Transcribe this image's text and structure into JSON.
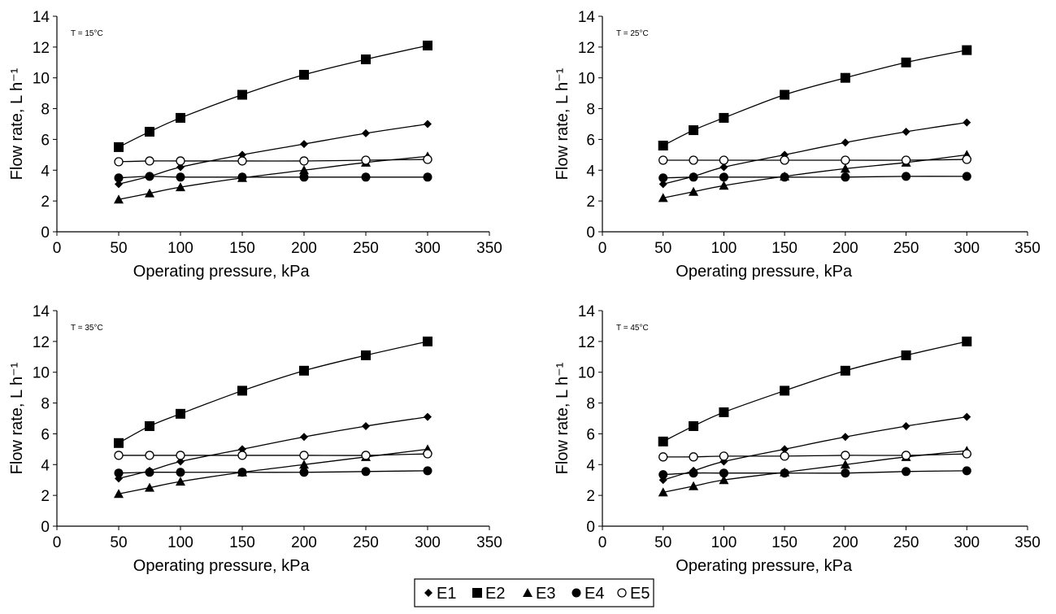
{
  "chart_data": [
    {
      "type": "line",
      "annotation": "T = 15°C",
      "xlabel": "Operating pressure, kPa",
      "ylabel": "Flow rate, L h⁻¹",
      "xlim": [
        0,
        350
      ],
      "ylim": [
        0,
        14
      ],
      "xticks": [
        0,
        50,
        100,
        150,
        200,
        250,
        300,
        350
      ],
      "yticks": [
        0,
        2,
        4,
        6,
        8,
        10,
        12,
        14
      ],
      "x": [
        50,
        75,
        100,
        150,
        200,
        250,
        300
      ],
      "series": [
        {
          "name": "E1",
          "values": [
            3.1,
            3.6,
            4.2,
            5.0,
            5.7,
            6.4,
            7.0
          ]
        },
        {
          "name": "E2",
          "values": [
            5.5,
            6.5,
            7.4,
            8.9,
            10.2,
            11.2,
            12.1
          ]
        },
        {
          "name": "E3",
          "values": [
            2.1,
            2.5,
            2.9,
            3.5,
            4.0,
            4.5,
            4.9
          ]
        },
        {
          "name": "E4",
          "values": [
            3.5,
            3.6,
            3.55,
            3.55,
            3.55,
            3.55,
            3.55
          ]
        },
        {
          "name": "E5",
          "values": [
            4.55,
            4.6,
            4.6,
            4.6,
            4.6,
            4.65,
            4.7
          ]
        }
      ]
    },
    {
      "type": "line",
      "annotation": "T = 25°C",
      "xlabel": "Operating pressure, kPa",
      "ylabel": "Flow rate, L h⁻¹",
      "xlim": [
        0,
        350
      ],
      "ylim": [
        0,
        14
      ],
      "xticks": [
        0,
        50,
        100,
        150,
        200,
        250,
        300,
        350
      ],
      "yticks": [
        0,
        2,
        4,
        6,
        8,
        10,
        12,
        14
      ],
      "x": [
        50,
        75,
        100,
        150,
        200,
        250,
        300
      ],
      "series": [
        {
          "name": "E1",
          "values": [
            3.1,
            3.6,
            4.2,
            5.0,
            5.8,
            6.5,
            7.1
          ]
        },
        {
          "name": "E2",
          "values": [
            5.6,
            6.6,
            7.4,
            8.9,
            10.0,
            11.0,
            11.8
          ]
        },
        {
          "name": "E3",
          "values": [
            2.2,
            2.6,
            3.0,
            3.6,
            4.1,
            4.5,
            5.0
          ]
        },
        {
          "name": "E4",
          "values": [
            3.5,
            3.55,
            3.55,
            3.55,
            3.55,
            3.6,
            3.6
          ]
        },
        {
          "name": "E5",
          "values": [
            4.65,
            4.65,
            4.65,
            4.65,
            4.65,
            4.65,
            4.7
          ]
        }
      ]
    },
    {
      "type": "line",
      "annotation": "T = 35°C",
      "xlabel": "Operating pressure, kPa",
      "ylabel": "Flow rate, L h⁻¹",
      "xlim": [
        0,
        350
      ],
      "ylim": [
        0,
        14
      ],
      "xticks": [
        0,
        50,
        100,
        150,
        200,
        250,
        300,
        350
      ],
      "yticks": [
        0,
        2,
        4,
        6,
        8,
        10,
        12,
        14
      ],
      "x": [
        50,
        75,
        100,
        150,
        200,
        250,
        300
      ],
      "series": [
        {
          "name": "E1",
          "values": [
            3.1,
            3.6,
            4.2,
            5.0,
            5.8,
            6.5,
            7.1
          ]
        },
        {
          "name": "E2",
          "values": [
            5.4,
            6.5,
            7.3,
            8.8,
            10.1,
            11.1,
            12.0
          ]
        },
        {
          "name": "E3",
          "values": [
            2.1,
            2.5,
            2.9,
            3.5,
            4.0,
            4.5,
            5.0
          ]
        },
        {
          "name": "E4",
          "values": [
            3.45,
            3.5,
            3.5,
            3.5,
            3.5,
            3.55,
            3.6
          ]
        },
        {
          "name": "E5",
          "values": [
            4.6,
            4.6,
            4.6,
            4.6,
            4.6,
            4.6,
            4.7
          ]
        }
      ]
    },
    {
      "type": "line",
      "annotation": "T = 45°C",
      "xlabel": "Operating pressure, kPa",
      "ylabel": "Flow rate, L h⁻¹",
      "xlim": [
        0,
        350
      ],
      "ylim": [
        0,
        14
      ],
      "xticks": [
        0,
        50,
        100,
        150,
        200,
        250,
        300,
        350
      ],
      "yticks": [
        0,
        2,
        4,
        6,
        8,
        10,
        12,
        14
      ],
      "x": [
        50,
        75,
        100,
        150,
        200,
        250,
        300
      ],
      "series": [
        {
          "name": "E1",
          "values": [
            3.0,
            3.6,
            4.2,
            5.0,
            5.8,
            6.5,
            7.1
          ]
        },
        {
          "name": "E2",
          "values": [
            5.5,
            6.5,
            7.4,
            8.8,
            10.1,
            11.1,
            12.0
          ]
        },
        {
          "name": "E3",
          "values": [
            2.2,
            2.6,
            3.0,
            3.5,
            4.0,
            4.5,
            4.9
          ]
        },
        {
          "name": "E4",
          "values": [
            3.35,
            3.45,
            3.45,
            3.45,
            3.45,
            3.55,
            3.6
          ]
        },
        {
          "name": "E5",
          "values": [
            4.5,
            4.5,
            4.55,
            4.55,
            4.6,
            4.6,
            4.7
          ]
        }
      ]
    }
  ],
  "legend": {
    "placement": "bottom-center",
    "items": [
      {
        "label": "E1",
        "marker": "diamond-filled"
      },
      {
        "label": "E2",
        "marker": "square-filled"
      },
      {
        "label": "E3",
        "marker": "triangle-filled"
      },
      {
        "label": "E4",
        "marker": "circle-filled"
      },
      {
        "label": "E5",
        "marker": "circle-open"
      }
    ]
  },
  "colors": {
    "ink": "#000000",
    "background": "#ffffff"
  }
}
